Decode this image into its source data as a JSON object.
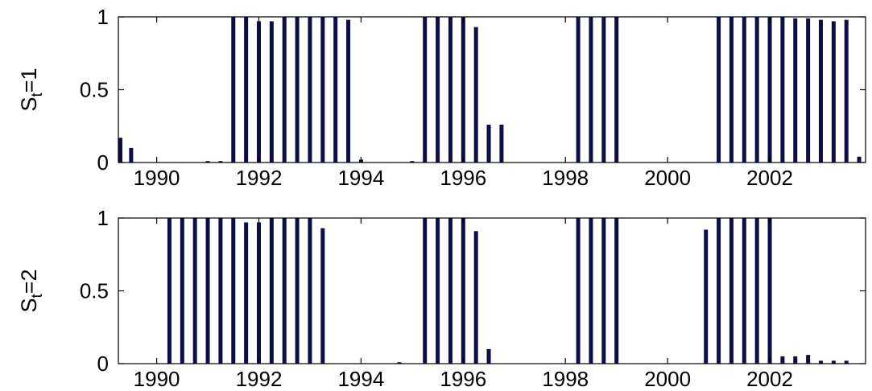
{
  "chart_data": [
    {
      "type": "bar",
      "ylabel": "S_t=1",
      "ylabel_main": "S",
      "ylabel_sub": "t",
      "ylabel_rest": "=1",
      "ylim": [
        0,
        1
      ],
      "yticks": [
        0,
        0.5,
        1
      ],
      "ytick_labels": [
        "0",
        "0.5",
        "1"
      ],
      "xticks": [
        1990,
        1992,
        1994,
        1996,
        1998,
        2000,
        2002
      ],
      "xtick_labels": [
        "1990",
        "1992",
        "1994",
        "1996",
        "1998",
        "2000",
        "2002"
      ],
      "xlim": [
        1989.25,
        2003.875
      ],
      "bar_color": "#0d0d4a",
      "x": [
        1989.25,
        1989.5,
        1989.75,
        1990.0,
        1990.25,
        1990.5,
        1990.75,
        1991.0,
        1991.25,
        1991.5,
        1991.75,
        1992.0,
        1992.25,
        1992.5,
        1992.75,
        1993.0,
        1993.25,
        1993.5,
        1993.75,
        1994.0,
        1994.25,
        1994.5,
        1994.75,
        1995.0,
        1995.25,
        1995.5,
        1995.75,
        1996.0,
        1996.25,
        1996.5,
        1996.75,
        1997.0,
        1997.25,
        1997.5,
        1997.75,
        1998.0,
        1998.25,
        1998.5,
        1998.75,
        1999.0,
        1999.25,
        1999.5,
        1999.75,
        2000.0,
        2000.25,
        2000.5,
        2000.75,
        2001.0,
        2001.25,
        2001.5,
        2001.75,
        2002.0,
        2002.25,
        2002.5,
        2002.75,
        2003.0,
        2003.25,
        2003.5,
        2003.75
      ],
      "values": [
        0.17,
        0.1,
        0.0,
        0.0,
        0.0,
        0.0,
        0.0,
        0.01,
        0.01,
        1.0,
        1.0,
        0.97,
        0.97,
        1.0,
        1.0,
        1.0,
        1.0,
        1.0,
        0.98,
        0.02,
        0.0,
        0.0,
        0.0,
        0.01,
        1.0,
        1.0,
        1.0,
        1.0,
        0.93,
        0.26,
        0.26,
        0.0,
        0.0,
        0.0,
        0.0,
        0.0,
        1.0,
        1.0,
        1.0,
        1.0,
        0.0,
        0.0,
        0.0,
        0.0,
        0.0,
        0.0,
        0.0,
        1.0,
        1.0,
        1.0,
        1.0,
        1.0,
        1.0,
        0.99,
        0.99,
        0.98,
        0.97,
        0.98,
        0.04
      ]
    },
    {
      "type": "bar",
      "ylabel": "S_t=2",
      "ylabel_main": "S",
      "ylabel_sub": "t",
      "ylabel_rest": "=2",
      "ylim": [
        0,
        1
      ],
      "yticks": [
        0,
        0.5,
        1
      ],
      "ytick_labels": [
        "0",
        "0.5",
        "1"
      ],
      "xticks": [
        1990,
        1992,
        1994,
        1996,
        1998,
        2000,
        2002
      ],
      "xtick_labels": [
        "1990",
        "1992",
        "1994",
        "1996",
        "1998",
        "2000",
        "2002"
      ],
      "xlim": [
        1989.25,
        2003.875
      ],
      "bar_color": "#0d0d4a",
      "x": [
        1989.25,
        1989.5,
        1989.75,
        1990.0,
        1990.25,
        1990.5,
        1990.75,
        1991.0,
        1991.25,
        1991.5,
        1991.75,
        1992.0,
        1992.25,
        1992.5,
        1992.75,
        1993.0,
        1993.25,
        1993.5,
        1993.75,
        1994.0,
        1994.25,
        1994.5,
        1994.75,
        1995.0,
        1995.25,
        1995.5,
        1995.75,
        1996.0,
        1996.25,
        1996.5,
        1996.75,
        1997.0,
        1997.25,
        1997.5,
        1997.75,
        1998.0,
        1998.25,
        1998.5,
        1998.75,
        1999.0,
        1999.25,
        1999.5,
        1999.75,
        2000.0,
        2000.25,
        2000.5,
        2000.75,
        2001.0,
        2001.25,
        2001.5,
        2001.75,
        2002.0,
        2002.25,
        2002.5,
        2002.75,
        2003.0,
        2003.25,
        2003.5,
        2003.75
      ],
      "values": [
        0.0,
        0.0,
        0.0,
        0.0,
        1.0,
        1.0,
        1.0,
        1.0,
        1.0,
        1.0,
        0.97,
        0.97,
        1.0,
        1.0,
        1.0,
        1.0,
        0.93,
        0.0,
        0.0,
        0.0,
        0.0,
        0.0,
        0.01,
        0.0,
        1.0,
        1.0,
        1.0,
        1.0,
        0.91,
        0.1,
        0.0,
        0.0,
        0.0,
        0.0,
        0.0,
        0.0,
        1.0,
        1.0,
        1.0,
        1.0,
        0.0,
        0.0,
        0.0,
        0.0,
        0.0,
        0.0,
        0.92,
        1.0,
        1.0,
        1.0,
        1.0,
        1.0,
        0.05,
        0.05,
        0.06,
        0.02,
        0.02,
        0.02,
        0.0
      ]
    }
  ]
}
